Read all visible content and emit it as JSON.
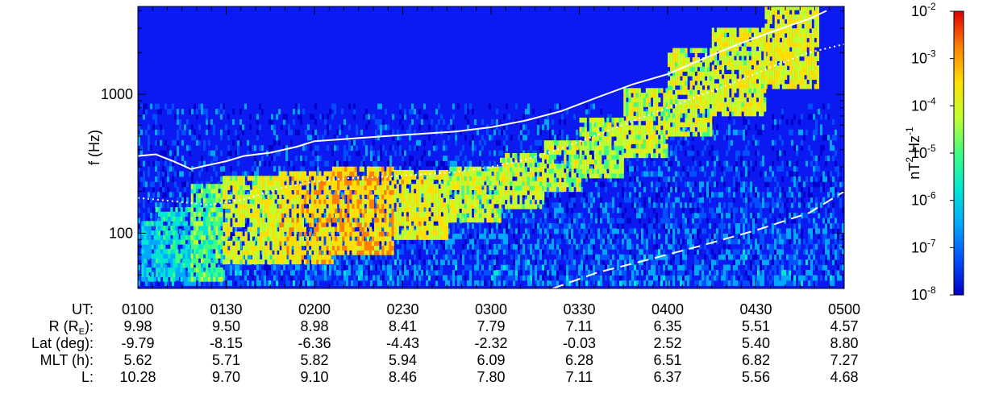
{
  "chart_data": {
    "type": "heatmap",
    "title": "",
    "ylabel": "f (Hz)",
    "yscale": "log",
    "ylim": [
      40,
      4300
    ],
    "y_ticks": [
      {
        "value": 100,
        "label": "100"
      },
      {
        "value": 1000,
        "label": "1000"
      }
    ],
    "xlim_ut": [
      "0100",
      "0500"
    ],
    "background_color": "#0a1af0",
    "colorbar": {
      "label_base": "nT",
      "label_sup": "2",
      "label_mid": " Hz",
      "label_sup2": "-1",
      "scale": "log",
      "range": [
        1e-08,
        0.01
      ],
      "ticks": [
        {
          "base": "10",
          "exp": "-2"
        },
        {
          "base": "10",
          "exp": "-3"
        },
        {
          "base": "10",
          "exp": "-4"
        },
        {
          "base": "10",
          "exp": "-5"
        },
        {
          "base": "10",
          "exp": "-6"
        },
        {
          "base": "10",
          "exp": "-7"
        },
        {
          "base": "10",
          "exp": "-8"
        }
      ],
      "colormap": [
        "#0000c8",
        "#0050ff",
        "#00a8ff",
        "#00e8d0",
        "#40ff80",
        "#c0ff30",
        "#ffe000",
        "#ff8000",
        "#e00000"
      ]
    },
    "emission_bands": [
      {
        "start_ut": 0.02,
        "end_ut": 0.1,
        "f_low": 45,
        "f_high": 120,
        "intensity": -6.0
      },
      {
        "start_ut": 0.1,
        "end_ut": 0.3,
        "f_low": 45,
        "f_high": 150,
        "intensity": -5.8
      },
      {
        "start_ut": 0.3,
        "end_ut": 0.48,
        "f_low": 45,
        "f_high": 210,
        "intensity": -5.0
      },
      {
        "start_ut": 0.48,
        "end_ut": 0.8,
        "f_low": 60,
        "f_high": 240,
        "intensity": -4.0
      },
      {
        "start_ut": 0.8,
        "end_ut": 1.1,
        "f_low": 60,
        "f_high": 270,
        "intensity": -3.5
      },
      {
        "start_ut": 1.1,
        "end_ut": 1.45,
        "f_low": 70,
        "f_high": 290,
        "intensity": -3.3
      },
      {
        "start_ut": 1.45,
        "end_ut": 1.75,
        "f_low": 90,
        "f_high": 270,
        "intensity": -3.8
      },
      {
        "start_ut": 1.75,
        "end_ut": 2.05,
        "f_low": 120,
        "f_high": 300,
        "intensity": -4.2
      },
      {
        "start_ut": 2.05,
        "end_ut": 2.3,
        "f_low": 150,
        "f_high": 350,
        "intensity": -4.2
      },
      {
        "start_ut": 2.3,
        "end_ut": 2.5,
        "f_low": 200,
        "f_high": 450,
        "intensity": -4.3
      },
      {
        "start_ut": 2.5,
        "end_ut": 2.75,
        "f_low": 250,
        "f_high": 650,
        "intensity": -4.4
      },
      {
        "start_ut": 2.75,
        "end_ut": 3.0,
        "f_low": 350,
        "f_high": 1100,
        "intensity": -4.2
      },
      {
        "start_ut": 3.0,
        "end_ut": 3.25,
        "f_low": 500,
        "f_high": 2000,
        "intensity": -4.1
      },
      {
        "start_ut": 3.25,
        "end_ut": 3.55,
        "f_low": 700,
        "f_high": 3000,
        "intensity": -4.0
      },
      {
        "start_ut": 3.55,
        "end_ut": 3.85,
        "f_low": 1100,
        "f_high": 4200,
        "intensity": -3.9
      }
    ],
    "lines": [
      {
        "style": "solid",
        "points": [
          [
            0.0,
            360
          ],
          [
            0.1,
            370
          ],
          [
            0.2,
            330
          ],
          [
            0.3,
            290
          ],
          [
            0.4,
            310
          ],
          [
            0.5,
            330
          ],
          [
            0.6,
            360
          ],
          [
            0.75,
            380
          ],
          [
            0.9,
            420
          ],
          [
            1.0,
            460
          ],
          [
            1.2,
            480
          ],
          [
            1.4,
            500
          ],
          [
            1.6,
            520
          ],
          [
            1.8,
            540
          ],
          [
            2.0,
            580
          ],
          [
            2.2,
            650
          ],
          [
            2.4,
            760
          ],
          [
            2.6,
            950
          ],
          [
            2.8,
            1180
          ],
          [
            3.0,
            1400
          ],
          [
            3.2,
            1800
          ],
          [
            3.4,
            2300
          ],
          [
            3.6,
            2850
          ],
          [
            3.8,
            3500
          ],
          [
            3.9,
            4000
          ]
        ]
      },
      {
        "style": "dotted",
        "points": [
          [
            0.0,
            180
          ],
          [
            0.2,
            170
          ],
          [
            0.4,
            160
          ],
          [
            0.6,
            175
          ],
          [
            0.8,
            210
          ],
          [
            1.0,
            235
          ],
          [
            1.2,
            250
          ],
          [
            1.4,
            255
          ],
          [
            1.6,
            265
          ],
          [
            1.8,
            275
          ],
          [
            2.0,
            300
          ],
          [
            2.2,
            340
          ],
          [
            2.4,
            410
          ],
          [
            2.6,
            510
          ],
          [
            2.8,
            640
          ],
          [
            3.0,
            800
          ],
          [
            3.2,
            1000
          ],
          [
            3.4,
            1250
          ],
          [
            3.6,
            1600
          ],
          [
            3.8,
            2000
          ],
          [
            4.0,
            2300
          ]
        ]
      },
      {
        "style": "dashed",
        "points": [
          [
            2.35,
            40
          ],
          [
            2.6,
            52
          ],
          [
            2.9,
            65
          ],
          [
            3.2,
            82
          ],
          [
            3.5,
            105
          ],
          [
            3.8,
            140
          ],
          [
            4.0,
            200
          ]
        ]
      }
    ]
  },
  "ephemeris": {
    "labels": [
      "UT:",
      "R (R",
      "Lat (deg):",
      "MLT (h):",
      "L:"
    ],
    "r_label_sub": "E",
    "r_label_end": "):",
    "rows": [
      [
        "0100",
        "0130",
        "0200",
        "0230",
        "0300",
        "0330",
        "0400",
        "0430",
        "0500"
      ],
      [
        "9.98",
        "9.50",
        "8.98",
        "8.41",
        "7.79",
        "7.11",
        "6.35",
        "5.51",
        "4.57"
      ],
      [
        "-9.79",
        "-8.15",
        "-6.36",
        "-4.43",
        "-2.32",
        "-0.03",
        "2.52",
        "5.40",
        "8.80"
      ],
      [
        "5.62",
        "5.71",
        "5.82",
        "5.94",
        "6.09",
        "6.28",
        "6.51",
        "6.82",
        "7.27"
      ],
      [
        "10.28",
        "9.70",
        "9.10",
        "8.46",
        "7.80",
        "7.11",
        "6.37",
        "5.56",
        "4.68"
      ]
    ]
  }
}
